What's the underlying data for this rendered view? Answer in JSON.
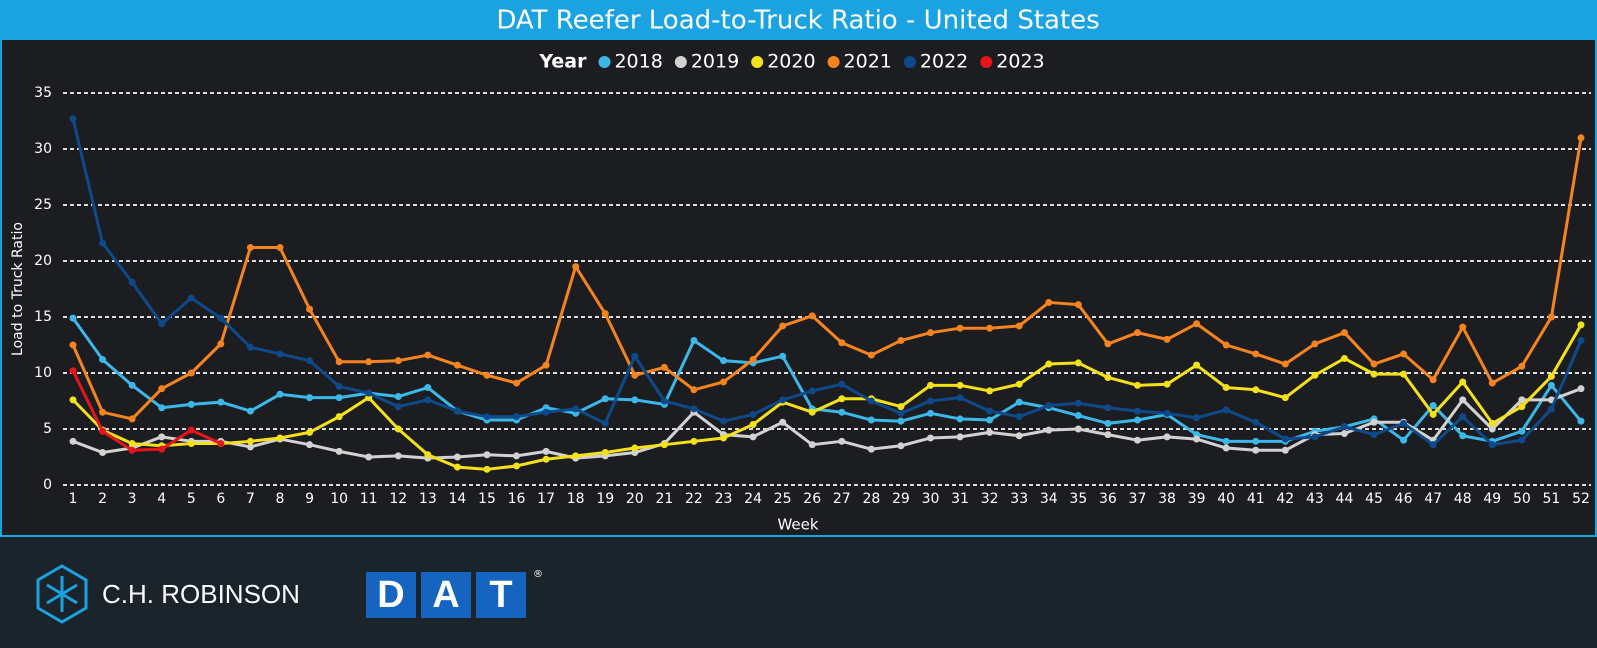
{
  "chart_data": {
    "type": "line",
    "title": "DAT Reefer Load-to-Truck Ratio - United States",
    "legend_title": "Year",
    "x_label": "Week",
    "y_label": "Load to Truck Ratio",
    "x": [
      1,
      2,
      3,
      4,
      5,
      6,
      7,
      8,
      9,
      10,
      11,
      12,
      13,
      14,
      15,
      16,
      17,
      18,
      19,
      20,
      21,
      22,
      23,
      24,
      25,
      26,
      27,
      28,
      29,
      30,
      31,
      32,
      33,
      34,
      35,
      36,
      37,
      38,
      39,
      40,
      41,
      42,
      43,
      44,
      45,
      46,
      47,
      48,
      49,
      50,
      51,
      52
    ],
    "xlim": [
      1,
      52
    ],
    "xticks": [
      1,
      2,
      3,
      4,
      5,
      6,
      7,
      8,
      9,
      10,
      11,
      12,
      13,
      14,
      15,
      16,
      17,
      18,
      19,
      20,
      21,
      22,
      23,
      24,
      25,
      26,
      27,
      28,
      29,
      30,
      31,
      32,
      33,
      34,
      35,
      36,
      37,
      38,
      39,
      40,
      41,
      42,
      43,
      44,
      45,
      46,
      47,
      48,
      49,
      50,
      51,
      52
    ],
    "ylim": [
      0,
      35
    ],
    "yticks": [
      0,
      5,
      10,
      15,
      20,
      25,
      30,
      35
    ],
    "grid": true,
    "legend": "top",
    "series": [
      {
        "name": "2018",
        "color": "#3cb8e8",
        "values": [
          14.9,
          11.2,
          8.9,
          6.9,
          7.2,
          7.4,
          6.6,
          8.1,
          7.8,
          7.8,
          8.2,
          7.9,
          8.7,
          6.6,
          5.8,
          5.8,
          6.9,
          6.4,
          7.7,
          7.6,
          7.2,
          12.9,
          11.1,
          10.9,
          11.5,
          6.8,
          6.5,
          5.8,
          5.7,
          6.4,
          5.9,
          5.8,
          7.4,
          6.9,
          6.2,
          5.5,
          5.8,
          6.3,
          4.5,
          3.9,
          3.9,
          3.9,
          4.8,
          5.2,
          5.9,
          4.0,
          7.1,
          4.4,
          3.9,
          4.8,
          8.9,
          5.7
        ]
      },
      {
        "name": "2019",
        "color": "#d2d2d2",
        "values": [
          3.9,
          2.9,
          3.3,
          4.3,
          3.9,
          3.9,
          3.4,
          4.1,
          3.6,
          3.0,
          2.5,
          2.6,
          2.4,
          2.5,
          2.7,
          2.6,
          3.0,
          2.4,
          2.6,
          2.9,
          3.7,
          6.5,
          4.5,
          4.3,
          5.6,
          3.6,
          3.9,
          3.2,
          3.5,
          4.2,
          4.3,
          4.7,
          4.4,
          4.9,
          5.0,
          4.5,
          4.0,
          4.3,
          4.1,
          3.3,
          3.1,
          3.1,
          4.5,
          4.6,
          5.6,
          5.6,
          4.0,
          7.6,
          5.0,
          7.6,
          7.6,
          8.6
        ]
      },
      {
        "name": "2020",
        "color": "#f5e11a",
        "values": [
          7.6,
          4.9,
          3.7,
          3.5,
          3.7,
          3.7,
          3.9,
          4.2,
          4.7,
          6.1,
          7.8,
          5.0,
          2.7,
          1.6,
          1.4,
          1.7,
          2.3,
          2.6,
          2.9,
          3.3,
          3.6,
          3.9,
          4.2,
          5.4,
          7.4,
          6.5,
          7.7,
          7.7,
          7.0,
          8.9,
          8.9,
          8.4,
          9.0,
          10.8,
          10.9,
          9.6,
          8.9,
          9.0,
          10.7,
          8.7,
          8.5,
          7.8,
          9.8,
          11.3,
          9.9,
          9.9,
          6.3,
          9.2,
          5.5,
          7.0,
          9.7,
          14.3
        ]
      },
      {
        "name": "2021",
        "color": "#f5841f",
        "values": [
          12.5,
          6.5,
          5.9,
          8.6,
          10.0,
          12.6,
          21.2,
          21.2,
          15.7,
          11.0,
          11.0,
          11.1,
          11.6,
          10.7,
          9.8,
          9.1,
          10.7,
          19.5,
          15.3,
          9.8,
          10.5,
          8.5,
          9.2,
          11.2,
          14.2,
          15.1,
          12.7,
          11.6,
          12.9,
          13.6,
          14.0,
          14.0,
          14.2,
          16.3,
          16.1,
          12.6,
          13.6,
          13.0,
          14.4,
          12.5,
          11.7,
          10.8,
          12.6,
          13.6,
          10.8,
          11.7,
          9.4,
          14.1,
          9.1,
          10.6,
          15.0,
          31.0
        ]
      },
      {
        "name": "2022",
        "color": "#0e4a8a",
        "values": [
          32.7,
          21.6,
          18.1,
          14.4,
          16.7,
          14.9,
          12.3,
          11.7,
          11.1,
          8.8,
          8.2,
          7.0,
          7.6,
          6.6,
          6.1,
          6.1,
          6.5,
          6.8,
          5.5,
          11.5,
          7.5,
          6.8,
          5.7,
          6.3,
          7.6,
          8.4,
          9.0,
          7.5,
          6.4,
          7.5,
          7.8,
          6.6,
          6.1,
          7.1,
          7.3,
          6.9,
          6.6,
          6.4,
          6.0,
          6.7,
          5.6,
          4.1,
          4.3,
          5.2,
          4.5,
          5.5,
          3.6,
          6.1,
          3.6,
          4.0,
          6.8,
          12.9
        ]
      },
      {
        "name": "2023",
        "color": "#e8141b",
        "values": [
          10.2,
          4.8,
          3.1,
          3.2,
          4.9,
          3.7,
          null,
          null,
          null,
          null,
          null,
          null,
          null,
          null,
          null,
          null,
          null,
          null,
          null,
          null,
          null,
          null,
          null,
          null,
          null,
          null,
          null,
          null,
          null,
          null,
          null,
          null,
          null,
          null,
          null,
          null,
          null,
          null,
          null,
          null,
          null,
          null,
          null,
          null,
          null,
          null,
          null,
          null,
          null,
          null,
          null,
          null
        ]
      }
    ]
  },
  "footer": {
    "brand_1": "C.H. ROBINSON",
    "brand_2": [
      "D",
      "A",
      "T"
    ],
    "trademark": "®"
  }
}
